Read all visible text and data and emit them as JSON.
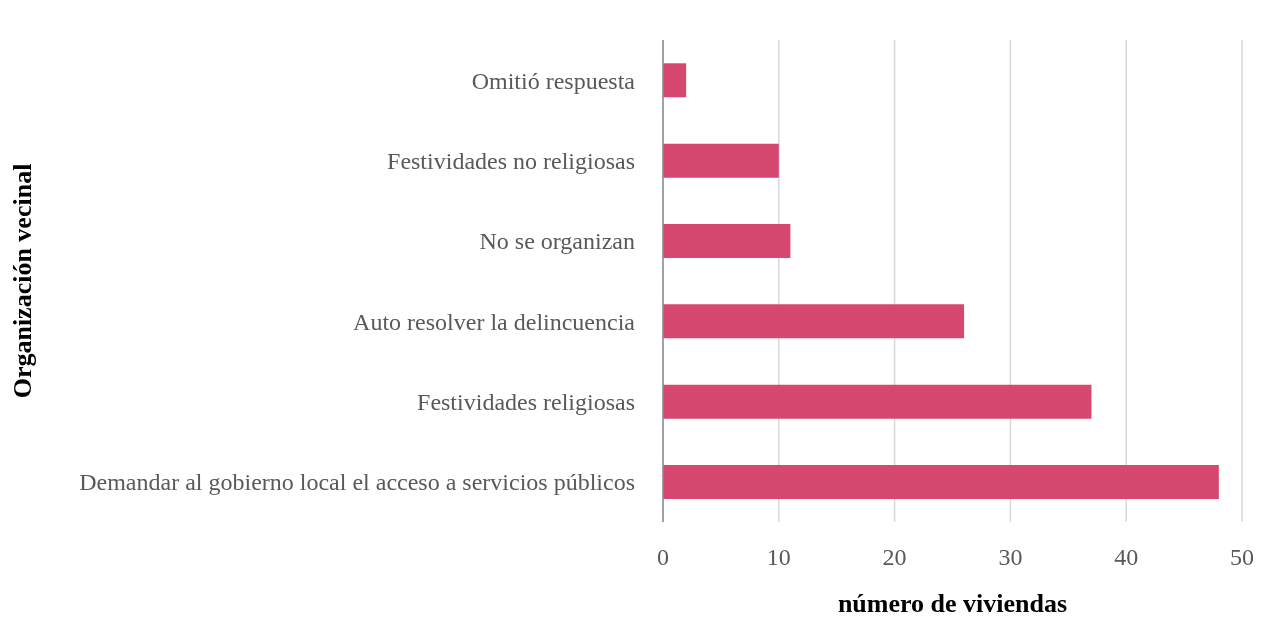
{
  "chart_data": {
    "type": "bar",
    "orientation": "horizontal",
    "xlabel": "número de viviendas",
    "ylabel": "Organización  vecinal",
    "categories": [
      "Omitió respuesta",
      "Festividades no religiosas",
      "No se organizan",
      "Auto resolver la delincuencia",
      "Festividades religiosas",
      "Demandar al gobierno local el acceso a  servicios públicos"
    ],
    "values": [
      2,
      10,
      11,
      26,
      37,
      48
    ],
    "color": "#d6486f",
    "xlim": [
      0,
      50
    ],
    "xticks": [
      0,
      10,
      20,
      30,
      40,
      50
    ],
    "grid": "x"
  }
}
